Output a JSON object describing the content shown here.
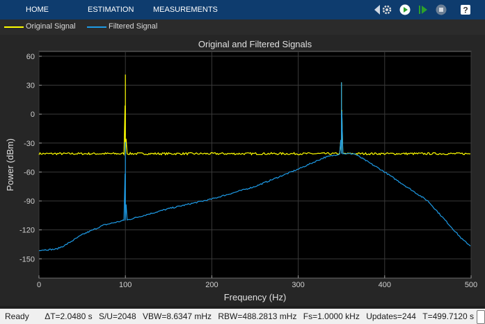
{
  "toolstrip": {
    "tabs": [
      "HOME",
      "ESTIMATION",
      "MEASUREMENTS"
    ],
    "buttons": [
      "settings-icon",
      "run-icon",
      "step-forward-icon",
      "stop-icon",
      "help-icon"
    ],
    "help_glyph": "?"
  },
  "legend": [
    {
      "label": "Original Signal",
      "color": "#ffff00"
    },
    {
      "label": "Filtered Signal",
      "color": "#1e9be6"
    }
  ],
  "chart_data": {
    "type": "line",
    "title": "Original and Filtered Signals",
    "xlabel": "Frequency (Hz)",
    "ylabel": "Power (dBm)",
    "xlim": [
      0,
      500
    ],
    "ylim": [
      -170,
      65
    ],
    "xticks": [
      0,
      100,
      200,
      300,
      400,
      500
    ],
    "yticks": [
      60,
      30,
      0,
      -30,
      -60,
      -90,
      -120,
      -150
    ],
    "grid": true,
    "series": [
      {
        "name": "Original Signal",
        "color": "#ffff00",
        "x": [
          0,
          99,
          100,
          101,
          349,
          350,
          351,
          500
        ],
        "y": [
          -41,
          -41,
          41,
          -41,
          -41,
          33,
          -41,
          -41
        ]
      },
      {
        "name": "Filtered Signal",
        "color": "#1e9be6",
        "x": [
          0,
          20,
          30,
          50,
          75,
          99,
          100,
          101,
          150,
          200,
          250,
          300,
          330,
          349,
          350,
          351,
          365,
          400,
          450,
          490,
          500
        ],
        "y": [
          -141,
          -140,
          -136,
          -125,
          -115,
          -110,
          -29,
          -110,
          -98,
          -88,
          -75,
          -57,
          -45,
          -41,
          33,
          -41,
          -41,
          -60,
          -90,
          -130,
          -137
        ]
      }
    ]
  },
  "status": {
    "ready": "Ready",
    "fields": [
      "ΔT=2.0480 s",
      "S/U=2048",
      "VBW=8.6347 mHz",
      "RBW=488.2813 mHz",
      "Fs=1.0000 kHz",
      "Updates=244",
      "T=499.7120 s"
    ]
  }
}
